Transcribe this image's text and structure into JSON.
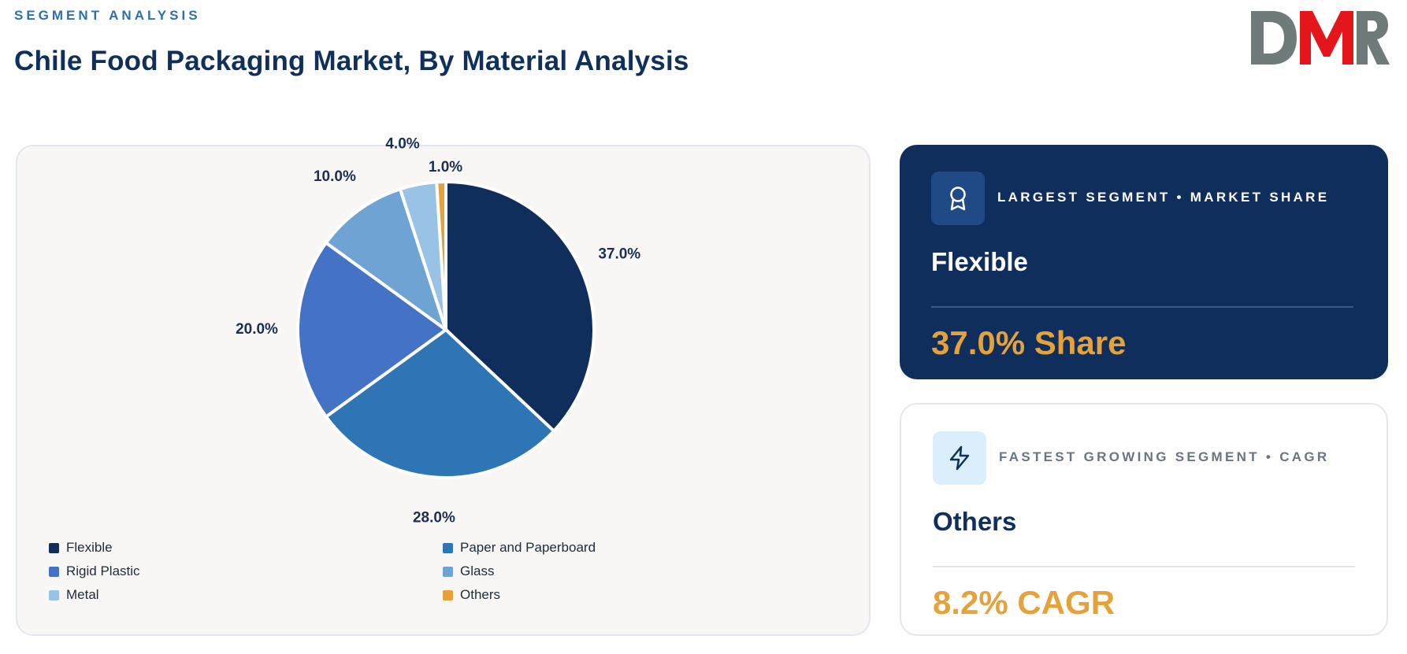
{
  "header": {
    "eyebrow": "SEGMENT ANALYSIS",
    "title": "Chile Food Packaging Market, By Material Analysis",
    "logo_text": "DMR"
  },
  "colors": {
    "navy": "#0f2e5b",
    "accent": "#e5a23a",
    "logo_grey": "#6f7b7a",
    "logo_red": "#e4161b"
  },
  "chart_data": {
    "type": "pie",
    "title": "",
    "categories": [
      "Flexible",
      "Paper and Paperboard",
      "Rigid Plastic",
      "Glass",
      "Metal",
      "Others"
    ],
    "values": [
      37.0,
      28.0,
      20.0,
      10.0,
      4.0,
      1.0
    ],
    "labels": [
      "37.0%",
      "28.0%",
      "20.0%",
      "10.0%",
      "4.0%",
      "1.0%"
    ],
    "colors": [
      "#0f2e5b",
      "#2e75b6",
      "#4472c4",
      "#6fa3d4",
      "#99c3e6",
      "#e5a23a"
    ],
    "legend_position": "bottom"
  },
  "largest": {
    "label": "LARGEST SEGMENT • MARKET SHARE",
    "name": "Flexible",
    "value": "37.0% Share",
    "icon": "award-icon"
  },
  "fastest": {
    "label": "FASTEST GROWING SEGMENT • CAGR",
    "name": "Others",
    "value": "8.2% CAGR",
    "icon": "lightning-icon"
  }
}
